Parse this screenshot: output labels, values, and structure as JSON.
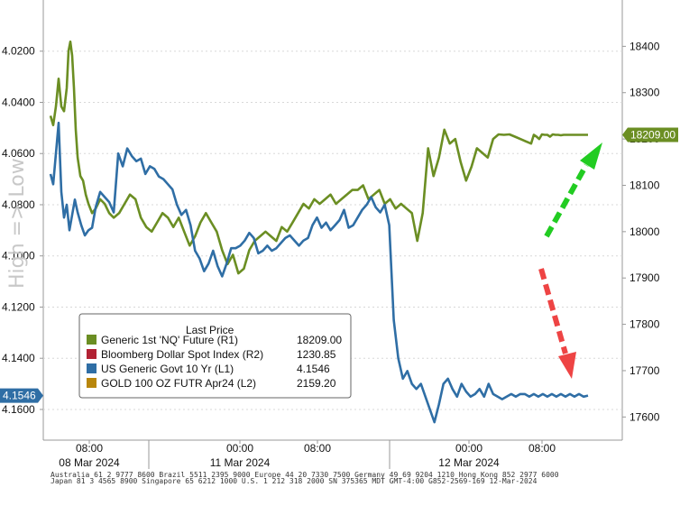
{
  "chart_data": {
    "type": "line",
    "title": "",
    "watermark": "High => Low",
    "x_axis": {
      "tick_labels": [
        "08:00",
        "00:00",
        "08:00",
        "00:00",
        "08:00"
      ],
      "date_labels": [
        "08 Mar 2024",
        "11 Mar 2024",
        "12 Mar 2024"
      ]
    },
    "left_axis": {
      "inverted": true,
      "ylim": [
        4.0,
        4.172
      ],
      "ticks": [
        "4.0200",
        "4.0400",
        "4.0600",
        "4.0800",
        "4.1000",
        "4.1200",
        "4.1400",
        "4.1600"
      ]
    },
    "right_axis": {
      "ylim": [
        17550,
        18500
      ],
      "ticks": [
        "18400",
        "18300",
        "18200",
        "18100",
        "18000",
        "17900",
        "17800",
        "17700",
        "17600"
      ]
    },
    "legend": {
      "title": "Last Price",
      "placement": "bottom-left",
      "entries": [
        {
          "name": "Generic 1st 'NQ' Future  (R1)",
          "value": "18209.00",
          "color": "#6b8e23"
        },
        {
          "name": "Bloomberg Dollar Spot Index  (R2)",
          "value": "1230.85",
          "color": "#b22234"
        },
        {
          "name": "US Generic Govt 10 Yr  (L1)",
          "value": "4.1546",
          "color": "#2f6ea5"
        },
        {
          "name": "GOLD 100 OZ FUTR Apr24  (L2)",
          "value": "2159.20",
          "color": "#b8860b"
        }
      ]
    },
    "last_value_tags": {
      "right": {
        "text": "18209.00",
        "color": "#6b8e23"
      },
      "left": {
        "text": "4.1546",
        "color": "#2f6ea5"
      }
    },
    "series": [
      {
        "name": "Generic 1st 'NQ' Future  (R1)",
        "axis": "right",
        "color": "#6b8e23",
        "x": [
          0,
          3,
          6,
          9,
          12,
          15,
          18,
          20,
          22,
          24,
          26,
          28,
          30,
          33,
          36,
          39,
          42,
          46,
          50,
          55,
          60,
          65,
          70,
          76,
          82,
          88,
          94,
          100,
          106,
          112,
          118,
          124,
          130,
          136,
          142,
          148,
          154,
          160,
          166,
          172,
          178,
          184,
          190,
          196,
          202,
          208,
          214,
          220,
          226,
          232,
          238,
          244,
          250,
          256,
          262,
          268,
          274,
          280,
          286,
          292,
          298,
          304,
          310,
          316,
          322,
          328,
          334,
          340,
          346,
          352,
          358,
          364,
          370,
          376,
          382,
          388,
          394,
          400,
          406,
          412,
          418,
          424,
          430,
          436,
          442,
          448,
          454,
          460,
          466,
          472,
          478,
          484,
          490,
          496,
          502,
          508,
          514,
          520,
          526,
          532,
          535,
          538,
          541,
          544,
          547,
          550,
          553,
          556,
          559,
          562,
          565,
          568,
          571,
          574,
          577,
          580,
          583,
          586,
          589,
          592,
          595
        ],
        "values": [
          18250,
          18230,
          18270,
          18330,
          18270,
          18260,
          18310,
          18390,
          18410,
          18380,
          18310,
          18220,
          18160,
          18120,
          18110,
          18080,
          18060,
          18040,
          18050,
          18070,
          18060,
          18040,
          18030,
          18040,
          18060,
          18080,
          18070,
          18030,
          18010,
          18000,
          18020,
          18040,
          18030,
          18010,
          18030,
          18000,
          17970,
          17990,
          18020,
          18040,
          18020,
          18000,
          17960,
          17930,
          17950,
          17910,
          17920,
          17960,
          17980,
          17990,
          18000,
          17990,
          17980,
          18010,
          18000,
          18020,
          18040,
          18060,
          18050,
          18070,
          18060,
          18070,
          18080,
          18060,
          18070,
          18080,
          18090,
          18090,
          18100,
          18070,
          18080,
          18090,
          18060,
          18070,
          18050,
          18060,
          18050,
          18040,
          17980,
          18040,
          18180,
          18120,
          18160,
          18220,
          18190,
          18200,
          18150,
          18110,
          18140,
          18180,
          18170,
          18160,
          18200,
          18210,
          18209,
          18210,
          18205,
          18200,
          18195,
          18190,
          18209,
          18205,
          18200,
          18210,
          18209,
          18209,
          18205,
          18210,
          18209,
          18209,
          18208,
          18209,
          18209,
          18209,
          18209,
          18209,
          18209,
          18209,
          18209,
          18209,
          18209
        ]
      },
      {
        "name": "US Generic Govt 10 Yr  (L1)",
        "axis": "left",
        "color": "#2f6ea5",
        "x": [
          0,
          3,
          6,
          9,
          12,
          15,
          18,
          21,
          24,
          27,
          30,
          34,
          38,
          42,
          46,
          50,
          55,
          60,
          65,
          70,
          75,
          80,
          85,
          90,
          95,
          100,
          105,
          110,
          115,
          120,
          125,
          130,
          135,
          140,
          145,
          150,
          155,
          160,
          165,
          170,
          175,
          180,
          185,
          190,
          195,
          200,
          205,
          210,
          215,
          220,
          225,
          230,
          235,
          240,
          245,
          250,
          255,
          260,
          265,
          270,
          275,
          280,
          285,
          290,
          295,
          300,
          305,
          310,
          315,
          320,
          325,
          330,
          335,
          340,
          345,
          350,
          355,
          360,
          365,
          370,
          375,
          380,
          385,
          390,
          395,
          400,
          405,
          410,
          415,
          420,
          425,
          430,
          435,
          440,
          445,
          450,
          455,
          460,
          465,
          470,
          475,
          480,
          485,
          490,
          495,
          500,
          505,
          510,
          515,
          520,
          525,
          530,
          535,
          540,
          545,
          550,
          555,
          560,
          565,
          570,
          575,
          580,
          585,
          590,
          595
        ],
        "values": [
          4.068,
          4.072,
          4.06,
          4.048,
          4.075,
          4.085,
          4.08,
          4.09,
          4.084,
          4.078,
          4.083,
          4.088,
          4.092,
          4.09,
          4.089,
          4.081,
          4.075,
          4.077,
          4.079,
          4.083,
          4.06,
          4.065,
          4.058,
          4.061,
          4.063,
          4.062,
          4.068,
          4.065,
          4.066,
          4.069,
          4.07,
          4.072,
          4.074,
          4.08,
          4.084,
          4.082,
          4.088,
          4.098,
          4.101,
          4.106,
          4.103,
          4.098,
          4.104,
          4.108,
          4.103,
          4.097,
          4.097,
          4.096,
          4.094,
          4.091,
          4.093,
          4.099,
          4.098,
          4.096,
          4.098,
          4.097,
          4.095,
          4.093,
          4.092,
          4.094,
          4.096,
          4.094,
          4.093,
          4.088,
          4.085,
          4.089,
          4.087,
          4.09,
          4.088,
          4.086,
          4.082,
          4.089,
          4.088,
          4.085,
          4.082,
          4.08,
          4.077,
          4.081,
          4.083,
          4.08,
          4.088,
          4.125,
          4.14,
          4.148,
          4.145,
          4.15,
          4.152,
          4.15,
          4.155,
          4.16,
          4.165,
          4.158,
          4.15,
          4.148,
          4.152,
          4.155,
          4.15,
          4.153,
          4.155,
          4.154,
          4.152,
          4.155,
          4.15,
          4.154,
          4.155,
          4.156,
          4.155,
          4.154,
          4.155,
          4.154,
          4.154,
          4.155,
          4.154,
          4.155,
          4.154,
          4.155,
          4.154,
          4.155,
          4.154,
          4.155,
          4.154,
          4.155,
          4.154,
          4.155,
          4.1546
        ]
      }
    ],
    "annotations": [
      {
        "type": "arrow",
        "color": "#22cc22",
        "direction": "up-right"
      },
      {
        "type": "arrow",
        "color": "#ee4444",
        "direction": "down-right"
      }
    ],
    "footer": [
      "Australia 61 2 9777 8600  Brazil 5511 2395 9000  Europe 44 20 7330 7500  Germany 49 69 9204 1210  Hong Kong 852 2977 6000",
      "Japan 81 3 4565 8900  Singapore 65 6212 1000  U.S. 1 212 318 2000   SN 375365 MDT  GMT-4:00 G852-2569-169 12-Mar-2024"
    ]
  }
}
